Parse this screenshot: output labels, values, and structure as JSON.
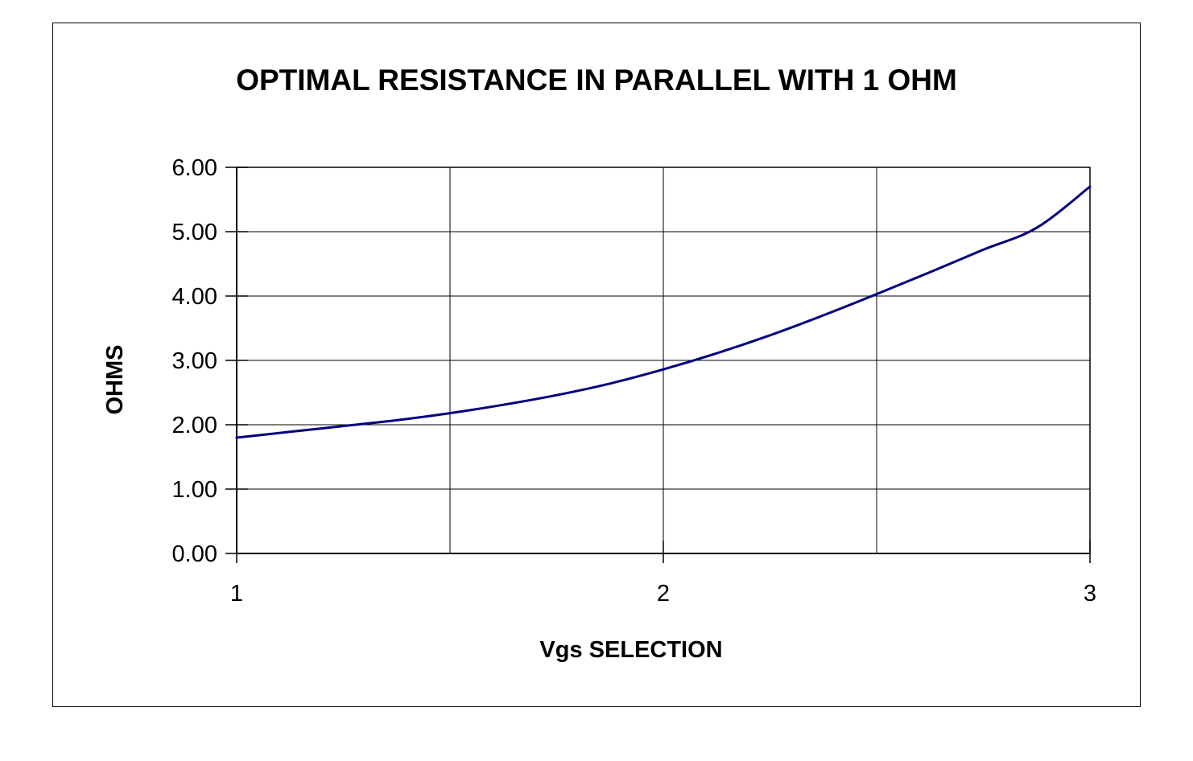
{
  "chart_data": {
    "type": "line",
    "title": "OPTIMAL RESISTANCE IN PARALLEL WITH 1 OHM",
    "xlabel": "Vgs SELECTION",
    "ylabel": "OHMS",
    "xlim": [
      1,
      3
    ],
    "ylim": [
      0,
      6
    ],
    "x_ticks": [
      1,
      2,
      3
    ],
    "x_tick_labels": [
      "1",
      "2",
      "3"
    ],
    "y_ticks": [
      0,
      1,
      2,
      3,
      4,
      5,
      6
    ],
    "y_tick_labels": [
      "0.00",
      "1.00",
      "2.00",
      "3.00",
      "4.00",
      "5.00",
      "6.00"
    ],
    "x_gridlines": [
      1.5,
      2,
      2.5
    ],
    "grid": true,
    "legend": "none",
    "series_color": "#000080",
    "series": [
      {
        "x": [
          1.0,
          1.125,
          1.25,
          1.375,
          1.5,
          1.625,
          1.75,
          1.875,
          2.0,
          2.125,
          2.25,
          2.375,
          2.5,
          2.625,
          2.75,
          2.875,
          3.0
        ],
        "values": [
          1.8,
          1.89,
          1.98,
          2.07,
          2.18,
          2.31,
          2.46,
          2.64,
          2.86,
          3.11,
          3.39,
          3.7,
          4.03,
          4.37,
          4.72,
          5.06,
          5.7
        ]
      }
    ]
  }
}
